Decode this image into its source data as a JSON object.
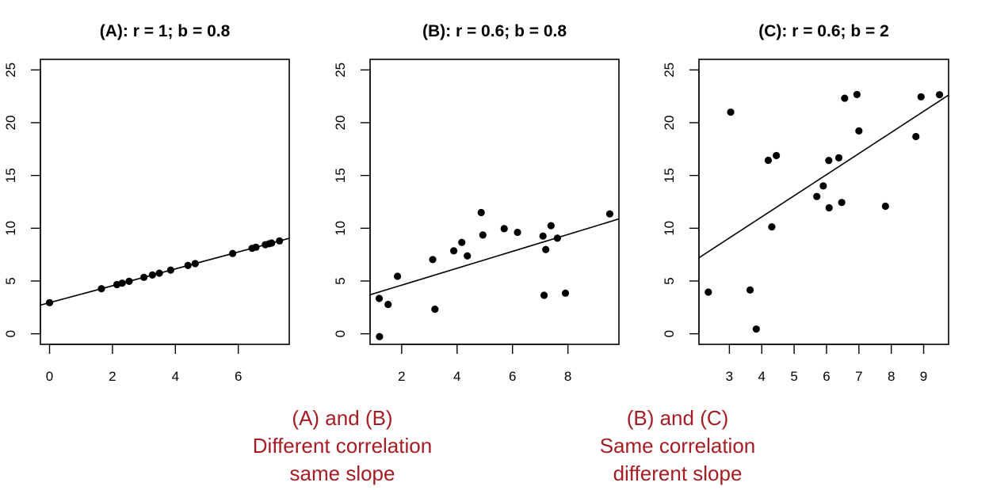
{
  "chart_data": [
    {
      "type": "scatter",
      "title": "(A):  r = 1;  b = 0.8",
      "xlim": [
        -0.29,
        7.62
      ],
      "ylim": [
        -1,
        26
      ],
      "xticks": [
        0,
        2,
        4,
        6
      ],
      "yticks": [
        0,
        5,
        10,
        15,
        20,
        25
      ],
      "grid": false,
      "x": [
        0,
        1.65,
        2.14,
        2.31,
        2.53,
        3.0,
        3.27,
        3.49,
        3.85,
        4.4,
        4.63,
        5.82,
        6.44,
        6.56,
        6.86,
        6.98,
        7.06,
        7.31
      ],
      "y": [
        2.95,
        4.27,
        4.66,
        4.8,
        4.97,
        5.35,
        5.57,
        5.74,
        6.03,
        6.47,
        6.65,
        7.61,
        8.1,
        8.2,
        8.44,
        8.53,
        8.6,
        8.8
      ],
      "fit_line": {
        "intercept": 2.95,
        "slope": 0.8
      }
    },
    {
      "type": "scatter",
      "title": "(B):  r = 0.6;   b = 0.8",
      "xlim": [
        0.86,
        9.84
      ],
      "ylim": [
        -1,
        26
      ],
      "xticks": [
        2,
        4,
        6,
        8
      ],
      "yticks": [
        0,
        5,
        10,
        15,
        20,
        25
      ],
      "grid": false,
      "x": [
        1.19,
        1.2,
        1.51,
        1.85,
        3.12,
        3.2,
        3.88,
        4.17,
        4.37,
        4.87,
        4.93,
        5.7,
        6.18,
        7.1,
        7.2,
        7.14,
        7.39,
        7.62,
        7.91,
        9.51
      ],
      "y": [
        3.35,
        -0.27,
        2.78,
        5.45,
        7.03,
        2.33,
        7.86,
        8.66,
        7.38,
        11.49,
        9.36,
        9.96,
        9.61,
        9.26,
        7.98,
        3.65,
        10.24,
        9.06,
        3.85,
        11.36
      ],
      "fit_line": {
        "intercept": 3.01,
        "slope": 0.8
      }
    },
    {
      "type": "scatter",
      "title": "(C):  r = 0.6;  b = 2",
      "xlim": [
        2.06,
        9.77
      ],
      "ylim": [
        -1,
        26
      ],
      "xticks": [
        3,
        4,
        5,
        6,
        7,
        8,
        9
      ],
      "yticks": [
        0,
        5,
        10,
        15,
        20,
        25
      ],
      "grid": false,
      "x": [
        2.35,
        3.04,
        3.64,
        3.83,
        4.2,
        4.45,
        4.31,
        5.7,
        5.9,
        6.07,
        6.08,
        6.38,
        6.47,
        6.56,
        6.94,
        7.0,
        7.82,
        8.76,
        8.92,
        9.49
      ],
      "y": [
        3.95,
        21.0,
        4.15,
        0.45,
        16.44,
        16.89,
        10.13,
        13.01,
        14.01,
        16.42,
        11.94,
        16.67,
        12.44,
        22.32,
        22.67,
        19.22,
        12.09,
        18.69,
        22.45,
        22.65
      ],
      "fit_line": {
        "intercept": 3.08,
        "slope": 2.0
      }
    }
  ],
  "annotations": [
    {
      "lines": [
        "(A) and (B)",
        "Different correlation",
        "same slope"
      ]
    },
    {
      "lines": [
        "(B) and (C)",
        "Same correlation",
        "different slope"
      ]
    }
  ],
  "colors": {
    "annotation": "#a51c24",
    "ink": "#000000"
  }
}
